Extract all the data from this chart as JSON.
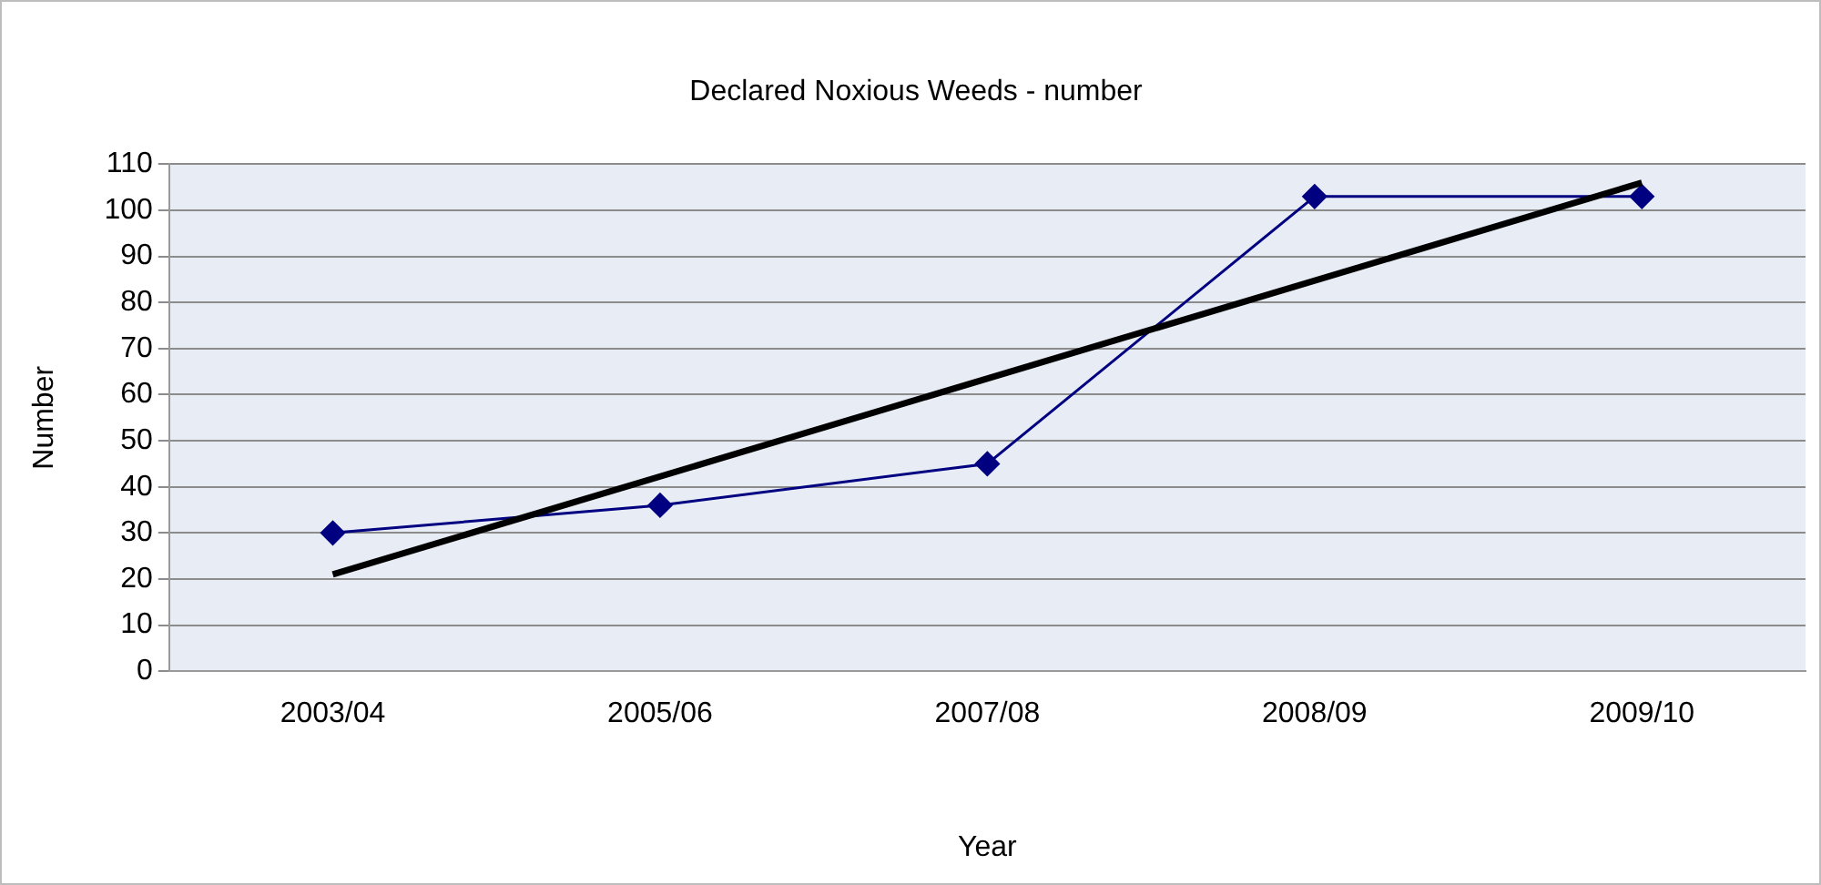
{
  "chart_data": {
    "type": "line",
    "title": "Declared Noxious Weeds - number",
    "xlabel": "Year",
    "ylabel": "Number",
    "categories": [
      "2003/04",
      "2005/06",
      "2007/08",
      "2008/09",
      "2009/10"
    ],
    "series": [
      {
        "color": "#000080",
        "values": [
          30,
          36,
          45,
          103,
          103
        ],
        "marker": "diamond"
      },
      {
        "type": "line",
        "color": "#000000",
        "x": [
          "2003/04",
          "2009/10"
        ],
        "values": [
          21,
          106
        ],
        "marker": "none"
      }
    ],
    "ylim": [
      0,
      110
    ],
    "yticks": [
      0,
      10,
      20,
      30,
      40,
      50,
      60,
      70,
      80,
      90,
      100,
      110
    ],
    "grid": "y",
    "legend": false
  }
}
